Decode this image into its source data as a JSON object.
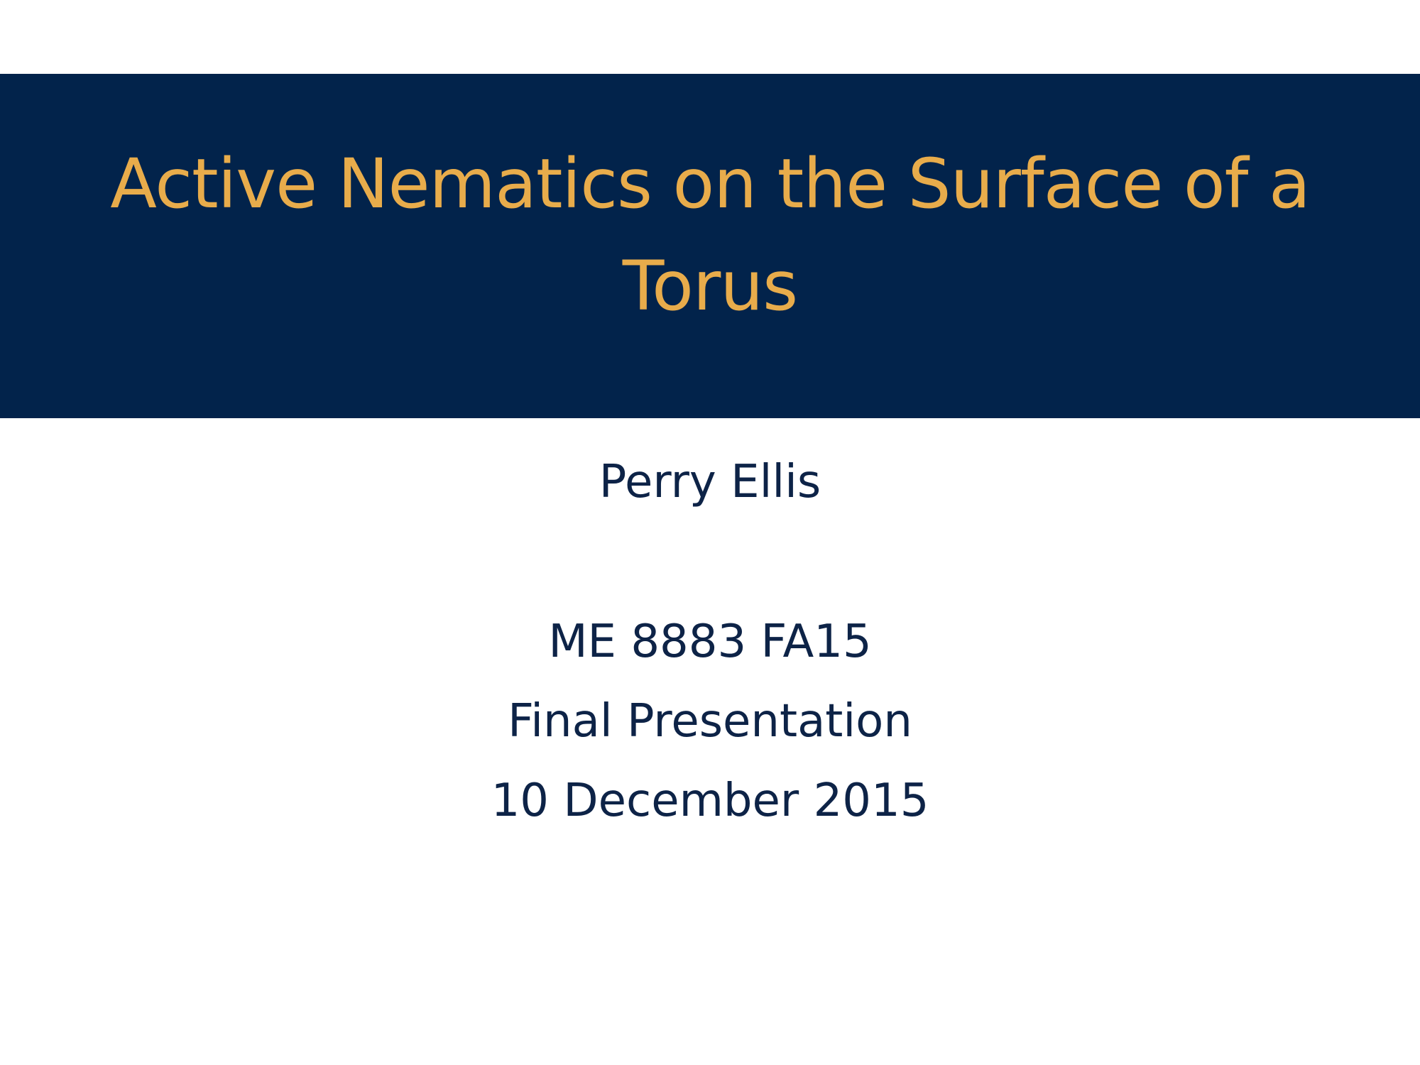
{
  "slide": {
    "title": "Active Nematics on the Surface of a Torus",
    "author": "Perry Ellis",
    "course": "ME 8883 FA15",
    "event": "Final Presentation",
    "date": "10 December 2015"
  },
  "colors": {
    "band_background": "#02234b",
    "title_text": "#e8ac4b",
    "body_text": "#0d2347",
    "page_background": "#ffffff"
  }
}
